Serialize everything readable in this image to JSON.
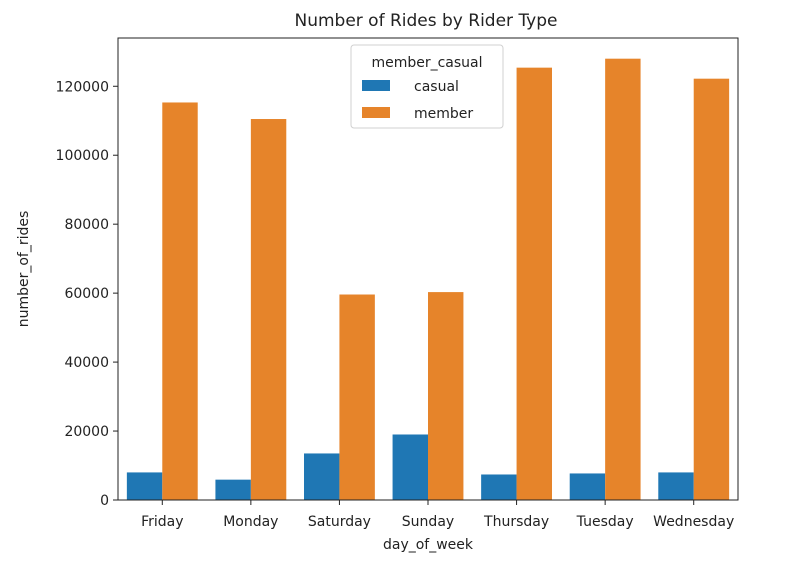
{
  "chart_data": {
    "type": "bar",
    "title": "Number of Rides by Rider Type",
    "xlabel": "day_of_week",
    "ylabel": "number_of_rides",
    "categories": [
      "Friday",
      "Monday",
      "Saturday",
      "Sunday",
      "Thursday",
      "Tuesday",
      "Wednesday"
    ],
    "series": [
      {
        "name": "casual",
        "values": [
          8000,
          5900,
          13500,
          19000,
          7400,
          7700,
          8000
        ],
        "color": "#1f77b4"
      },
      {
        "name": "member",
        "values": [
          115300,
          110500,
          59600,
          60300,
          125400,
          128000,
          122200
        ],
        "color": "#e6842a"
      }
    ],
    "ylim": [
      0,
      134000
    ],
    "yticks": [
      0,
      20000,
      40000,
      60000,
      80000,
      100000,
      120000
    ],
    "ytick_labels": [
      "0",
      "20000",
      "40000",
      "60000",
      "80000",
      "100000",
      "120000"
    ],
    "legend": {
      "title": "member_casual",
      "placement": "top-center"
    },
    "grid": false
  }
}
